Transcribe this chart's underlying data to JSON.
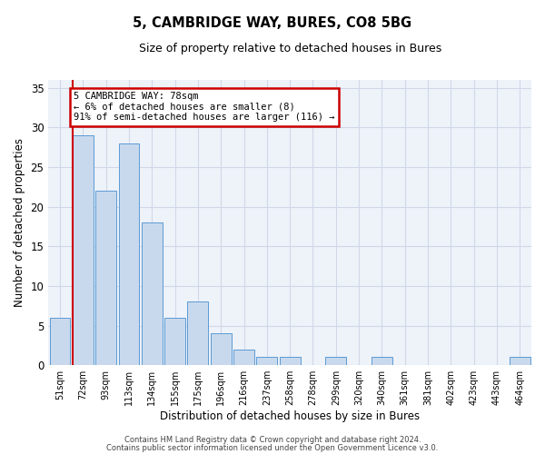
{
  "title": "5, CAMBRIDGE WAY, BURES, CO8 5BG",
  "subtitle": "Size of property relative to detached houses in Bures",
  "xlabel": "Distribution of detached houses by size in Bures",
  "ylabel": "Number of detached properties",
  "categories": [
    "51sqm",
    "72sqm",
    "93sqm",
    "113sqm",
    "134sqm",
    "155sqm",
    "175sqm",
    "196sqm",
    "216sqm",
    "237sqm",
    "258sqm",
    "278sqm",
    "299sqm",
    "320sqm",
    "340sqm",
    "361sqm",
    "381sqm",
    "402sqm",
    "423sqm",
    "443sqm",
    "464sqm"
  ],
  "values": [
    6,
    29,
    22,
    28,
    18,
    6,
    8,
    4,
    2,
    1,
    1,
    0,
    1,
    0,
    1,
    0,
    0,
    0,
    0,
    0,
    1
  ],
  "bar_color": "#c9d9ed",
  "bar_edge_color": "#5b9bd5",
  "grid_color": "#d0d8e8",
  "bg_color": "#eef2f9",
  "vline_color": "#cc0000",
  "annotation_text": "5 CAMBRIDGE WAY: 78sqm\n← 6% of detached houses are smaller (8)\n91% of semi-detached houses are larger (116) →",
  "annotation_box_color": "white",
  "annotation_box_edge_color": "#cc0000",
  "ylim": [
    0,
    36
  ],
  "yticks": [
    0,
    5,
    10,
    15,
    20,
    25,
    30,
    35
  ],
  "footnote1": "Contains HM Land Registry data © Crown copyright and database right 2024.",
  "footnote2": "Contains public sector information licensed under the Open Government Licence v3.0."
}
